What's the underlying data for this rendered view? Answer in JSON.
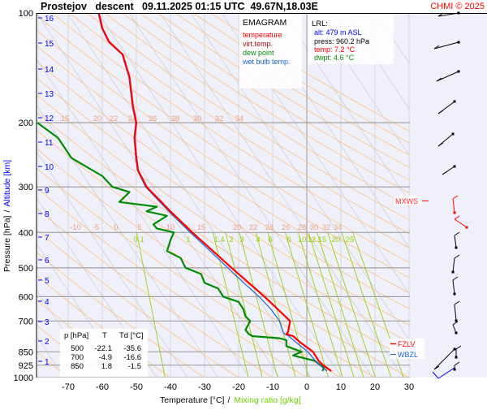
{
  "header": {
    "title": "Prostejov   descent   09.11.2025 01:15 UTC  49.67N,18.03E",
    "copyright": "CHMI © 2025"
  },
  "legend": {
    "title": "EMAGRAM",
    "items": [
      {
        "label": "temperature",
        "color": "#ff0000"
      },
      {
        "label": "virt.temp.",
        "color": "#a01010"
      },
      {
        "label": "dew point",
        "color": "#008c00"
      },
      {
        "label": "wet bulb temp.",
        "color": "#1e64dc"
      }
    ]
  },
  "lrl": {
    "title": "LRL:",
    "alt": "alt: 479 m ASL",
    "press": "press: 960.2 hPa",
    "temp": "temp: 7.2 °C",
    "dwpt": "dwpt: 4.6 °C"
  },
  "table": {
    "headers": [
      "p [hPa]",
      "T",
      "Td [°C]"
    ],
    "rows": [
      [
        "500",
        "-22.1",
        "-35.6"
      ],
      [
        "700",
        "-4.9",
        "-16.6"
      ],
      [
        "850",
        "1.8",
        "-1.5"
      ]
    ]
  },
  "markers": {
    "mxws": "MXWS",
    "fzlv": "FZLV",
    "wbzl": "WBZL"
  },
  "chart_data": {
    "type": "line",
    "title": "Prostejov descent 09.11.2025 01:15 UTC 49.67N,18.03E",
    "xlabel": "Temperature [°C]",
    "xlabel2": "Mixing ratio [g/kg]",
    "xlabel_sep": "/",
    "ylabel": "Pressure [hPa]",
    "ylabel_sep": "/",
    "ylabel2": "Altitude [km]",
    "xlim": [
      -79,
      40
    ],
    "ylim": [
      1000,
      100
    ],
    "y_scale": "log",
    "x_ticks": [
      -70,
      -60,
      -50,
      -40,
      -30,
      -20,
      -10,
      0,
      10,
      20,
      30
    ],
    "y_ticks": [
      100,
      200,
      300,
      400,
      500,
      600,
      700,
      850,
      925,
      1000
    ],
    "altitude_km_ticks": [
      1,
      2,
      3,
      4,
      5,
      6,
      7,
      8,
      9,
      10,
      11,
      12,
      13,
      14,
      15,
      16
    ],
    "adiabat_labels_200": [
      "15",
      "20",
      "22",
      "24",
      "26",
      "28",
      "30",
      "32",
      "34"
    ],
    "adiabat_labels_400": [
      "-10",
      "-5",
      "0",
      "5",
      "10",
      "15",
      "20",
      "22",
      "24",
      "26",
      "28",
      "30",
      "32",
      "34"
    ],
    "mixing_ratio_labels": [
      "0.1",
      "1",
      "1.4",
      "2",
      "3",
      "4",
      "6",
      "8",
      "10",
      "12",
      "15",
      "20",
      "25"
    ],
    "series": [
      {
        "name": "temperature",
        "color": "#ff0000",
        "p": [
          960,
          925,
          900,
          850,
          800,
          770,
          760,
          750,
          700,
          650,
          600,
          550,
          500,
          450,
          400,
          350,
          300,
          270,
          250,
          220,
          200,
          180,
          150,
          130,
          120,
          110,
          100
        ],
        "t": [
          7.2,
          4.8,
          3.5,
          1.8,
          -2,
          -4,
          -6,
          -5.5,
          -4.9,
          -8.5,
          -12.4,
          -17,
          -22.1,
          -27.5,
          -33.6,
          -40,
          -47,
          -49.5,
          -50,
          -50.5,
          -50,
          -51,
          -52,
          -54,
          -58,
          -60,
          -61
        ]
      },
      {
        "name": "wet bulb temp.",
        "color": "#1e64dc",
        "p": [
          960,
          925,
          900,
          850,
          800,
          770,
          760,
          750,
          700,
          650,
          600,
          550,
          500,
          450,
          400,
          350,
          300,
          270,
          250,
          220,
          200,
          180,
          150,
          130,
          120,
          110,
          100
        ],
        "t": [
          5.9,
          3.8,
          2.5,
          0.3,
          -3.2,
          -5.3,
          -6.5,
          -7,
          -8,
          -10.5,
          -14,
          -18.5,
          -23.2,
          -28.3,
          -34.2,
          -40.5,
          -47.3,
          -49.7,
          -50.2,
          -50.7,
          -50.2,
          -51.2,
          -52.2,
          -54.2,
          -58.2,
          -60.2,
          -61.2
        ]
      },
      {
        "name": "dew point",
        "color": "#008c00",
        "p": [
          960,
          940,
          925,
          900,
          870,
          850,
          820,
          790,
          780,
          770,
          760,
          740,
          700,
          680,
          650,
          620,
          600,
          570,
          550,
          520,
          500,
          470,
          450,
          420,
          400,
          390,
          380,
          360,
          350,
          340,
          330,
          310,
          300,
          280,
          250,
          220,
          200
        ],
        "t": [
          4.6,
          5,
          4,
          2.4,
          -4,
          -1.5,
          -6,
          -6,
          -8,
          -16,
          -17,
          -18,
          -16.6,
          -18,
          -18.6,
          -20,
          -24.5,
          -26,
          -30,
          -31,
          -35.6,
          -37,
          -41,
          -40,
          -39,
          -44,
          -45,
          -41,
          -47,
          -44,
          -55,
          -52,
          -57,
          -60,
          -69,
          -73,
          -79
        ]
      }
    ]
  }
}
